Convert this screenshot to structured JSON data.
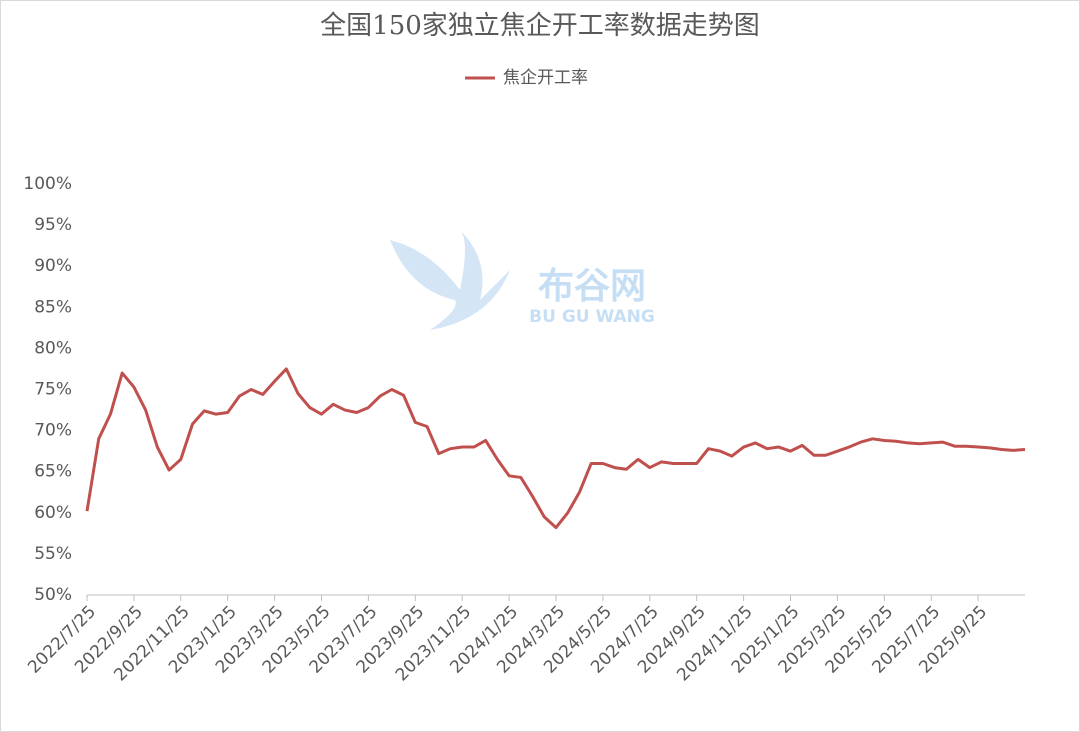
{
  "watermark": {
    "name": "布谷网",
    "pinyin": "BU GU WANG"
  },
  "chart_data": {
    "type": "line",
    "title": "全国150家独立焦企开工率数据走势图",
    "categories": [
      "2022/7/25",
      null,
      null,
      null,
      "2022/9/25",
      null,
      null,
      null,
      "2022/11/25",
      null,
      null,
      null,
      "2023/1/25",
      null,
      null,
      null,
      "2023/3/25",
      null,
      null,
      null,
      "2023/5/25",
      null,
      null,
      null,
      "2023/7/25",
      null,
      null,
      null,
      "2023/9/25",
      null,
      null,
      null,
      "2023/11/25",
      null,
      null,
      null,
      "2024/1/25",
      null,
      null,
      null,
      "2024/3/25",
      null,
      null,
      null,
      "2024/5/25",
      null,
      null,
      null,
      "2024/7/25",
      null,
      null,
      null,
      "2024/9/25",
      null,
      null,
      null,
      "2024/11/25",
      null,
      null,
      null,
      "2025/1/25",
      null,
      null,
      null,
      "2025/3/25",
      null,
      null,
      null,
      "2025/5/25",
      null,
      null,
      null,
      "2025/7/25",
      null,
      null,
      null,
      "2025/9/25",
      null,
      null,
      null,
      null
    ],
    "series": [
      {
        "name": "焦企开工率",
        "color": "#c0504d",
        "values": [
          60.2,
          69,
          72,
          77,
          75.3,
          72.5,
          68,
          65.2,
          66.5,
          70.8,
          72.4,
          72,
          72.2,
          74.2,
          75,
          74.4,
          76,
          77.5,
          74.5,
          72.8,
          72,
          73.2,
          72.5,
          72.2,
          72.8,
          74.2,
          75,
          74.3,
          71,
          70.5,
          67.2,
          67.8,
          68,
          68,
          68.8,
          66.5,
          64.5,
          64.3,
          62,
          59.5,
          58.2,
          60,
          62.5,
          66,
          66,
          65.5,
          65.3,
          66.5,
          65.5,
          66.2,
          66,
          66,
          66,
          67.8,
          67.5,
          66.9,
          68,
          68.5,
          67.8,
          68,
          67.5,
          68.2,
          67,
          67,
          67.5,
          68,
          68.6,
          69,
          68.8,
          68.7,
          68.5,
          68.4,
          68.5,
          68.6,
          68.1,
          68.1,
          68,
          67.9,
          67.7,
          67.6,
          67.7
        ]
      }
    ],
    "ylim": [
      50,
      100
    ],
    "yticks": [
      {
        "value": 50,
        "label": "50%"
      },
      {
        "value": 55,
        "label": "55%"
      },
      {
        "value": 60,
        "label": "60%"
      },
      {
        "value": 65,
        "label": "65%"
      },
      {
        "value": 70,
        "label": "70%"
      },
      {
        "value": 75,
        "label": "75%"
      },
      {
        "value": 80,
        "label": "80%"
      },
      {
        "value": 85,
        "label": "85%"
      },
      {
        "value": 90,
        "label": "90%"
      },
      {
        "value": 95,
        "label": "95%"
      },
      {
        "value": 100,
        "label": "100%"
      }
    ],
    "grid": false
  }
}
